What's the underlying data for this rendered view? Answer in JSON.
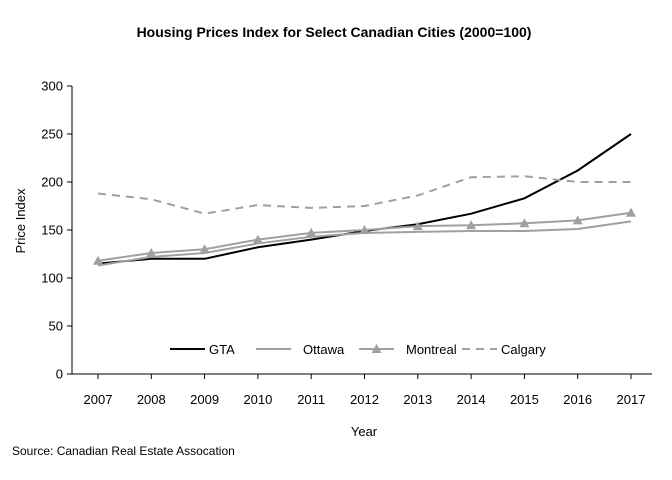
{
  "chart_data": {
    "type": "line",
    "title": "Housing Prices Index for Select Canadian Cities (2000=100)",
    "xlabel": "Year",
    "ylabel": "Price Index",
    "x": [
      "2007",
      "2008",
      "2009",
      "2010",
      "2011",
      "2012",
      "2013",
      "2014",
      "2015",
      "2016",
      "2017"
    ],
    "ylim": [
      0,
      300
    ],
    "yticks": [
      0,
      50,
      100,
      150,
      200,
      250,
      300
    ],
    "grid": false,
    "legend_position": "bottom-inside",
    "series": [
      {
        "name": "GTA",
        "color": "#000000",
        "style": "solid",
        "values": [
          115,
          120,
          120,
          132,
          140,
          149,
          156,
          167,
          183,
          212,
          250
        ]
      },
      {
        "name": "Ottawa",
        "color": "#a0a0a0",
        "style": "solid",
        "values": [
          113,
          122,
          126,
          136,
          143,
          147,
          148,
          149,
          149,
          151,
          159
        ]
      },
      {
        "name": "Montreal",
        "color": "#a0a0a0",
        "style": "solid-triangle",
        "values": [
          118,
          126,
          130,
          140,
          147,
          150,
          154,
          155,
          157,
          160,
          168
        ]
      },
      {
        "name": "Calgary",
        "color": "#a0a0a0",
        "style": "dashed",
        "values": [
          188,
          182,
          167,
          176,
          173,
          175,
          186,
          205,
          206,
          200,
          200
        ]
      }
    ]
  },
  "source": "Source: Canadian Real Estate Assocation"
}
